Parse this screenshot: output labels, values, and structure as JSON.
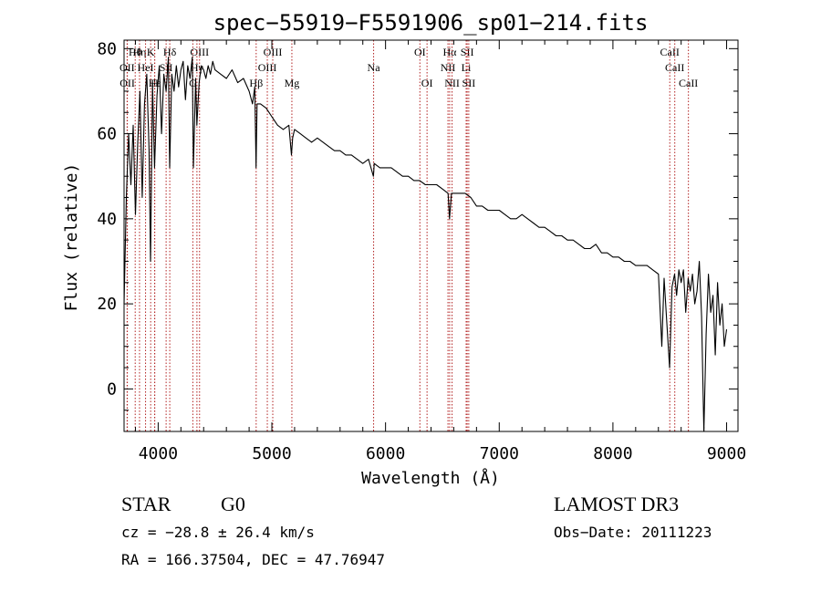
{
  "chart_data": {
    "type": "line",
    "title": "spec−55919−F5591906_sp01−214.fits",
    "xlabel": "Wavelength (Å)",
    "ylabel": "Flux (relative)",
    "xlim": [
      3700,
      9100
    ],
    "ylim": [
      -10,
      82
    ],
    "xticks": [
      4000,
      5000,
      6000,
      7000,
      8000,
      9000
    ],
    "yticks": [
      0,
      20,
      40,
      60,
      80
    ],
    "series": [
      {
        "name": "flux",
        "x": [
          3700,
          3720,
          3740,
          3760,
          3780,
          3800,
          3820,
          3840,
          3860,
          3880,
          3900,
          3920,
          3933,
          3950,
          3968,
          3990,
          4010,
          4030,
          4050,
          4070,
          4090,
          4101,
          4120,
          4140,
          4160,
          4180,
          4200,
          4220,
          4240,
          4260,
          4280,
          4300,
          4310,
          4330,
          4340,
          4360,
          4380,
          4400,
          4420,
          4440,
          4460,
          4480,
          4500,
          4550,
          4600,
          4650,
          4700,
          4750,
          4800,
          4830,
          4850,
          4861,
          4870,
          4900,
          4950,
          5000,
          5050,
          5100,
          5150,
          5172,
          5183,
          5200,
          5250,
          5300,
          5350,
          5400,
          5450,
          5500,
          5550,
          5600,
          5650,
          5700,
          5750,
          5800,
          5850,
          5893,
          5896,
          5900,
          5950,
          6000,
          6050,
          6100,
          6150,
          6200,
          6250,
          6300,
          6350,
          6400,
          6450,
          6500,
          6550,
          6563,
          6580,
          6600,
          6650,
          6700,
          6750,
          6800,
          6850,
          6900,
          6950,
          7000,
          7050,
          7100,
          7150,
          7200,
          7250,
          7300,
          7350,
          7400,
          7450,
          7500,
          7550,
          7600,
          7650,
          7700,
          7750,
          7800,
          7850,
          7900,
          7950,
          8000,
          8050,
          8100,
          8150,
          8200,
          8250,
          8300,
          8350,
          8400,
          8430,
          8450,
          8498,
          8520,
          8542,
          8560,
          8580,
          8600,
          8620,
          8640,
          8662,
          8680,
          8700,
          8720,
          8740,
          8760,
          8780,
          8800,
          8820,
          8840,
          8860,
          8880,
          8900,
          8920,
          8940,
          8960,
          8980,
          9000
        ],
        "values": [
          20,
          45,
          60,
          48,
          62,
          41,
          58,
          70,
          45,
          67,
          74,
          56,
          30,
          72,
          52,
          69,
          76,
          60,
          74,
          70,
          78,
          52,
          74,
          70,
          76,
          71,
          75,
          77,
          68,
          76,
          73,
          78,
          52,
          73,
          62,
          72,
          76,
          75,
          73,
          76,
          74,
          77,
          75,
          74,
          73,
          75,
          72,
          73,
          70,
          67,
          71,
          52,
          67,
          67,
          66,
          64,
          62,
          61,
          62,
          55,
          59,
          61,
          60,
          59,
          58,
          59,
          58,
          57,
          56,
          56,
          55,
          55,
          54,
          53,
          54,
          50,
          51,
          53,
          52,
          52,
          52,
          51,
          50,
          50,
          49,
          49,
          48,
          48,
          48,
          47,
          46,
          40,
          46,
          46,
          46,
          46,
          45,
          43,
          43,
          42,
          42,
          42,
          41,
          40,
          40,
          41,
          40,
          39,
          38,
          38,
          37,
          36,
          36,
          35,
          35,
          34,
          33,
          33,
          34,
          32,
          32,
          31,
          31,
          30,
          30,
          29,
          29,
          29,
          28,
          27,
          10,
          26,
          5,
          24,
          27,
          22,
          28,
          25,
          28,
          18,
          26,
          23,
          27,
          20,
          23,
          30,
          17,
          -10,
          13,
          27,
          18,
          22,
          8,
          25,
          15,
          20,
          10,
          14
        ]
      }
    ],
    "line_markers": [
      {
        "label": "Hθ",
        "wavelength": 3798,
        "row": 1
      },
      {
        "label": "Hη",
        "wavelength": 3836,
        "row": 1
      },
      {
        "label": "K",
        "wavelength": 3934,
        "row": 1
      },
      {
        "label": "Hδ",
        "wavelength": 4102,
        "row": 1
      },
      {
        "label": "OIII",
        "wavelength": 4364,
        "row": 1
      },
      {
        "label": "OIII",
        "wavelength": 5008,
        "row": 1
      },
      {
        "label": "OI",
        "wavelength": 6302,
        "row": 1
      },
      {
        "label": "Hα",
        "wavelength": 6564,
        "row": 1
      },
      {
        "label": "SII",
        "wavelength": 6718,
        "row": 1
      },
      {
        "label": "CaII",
        "wavelength": 8500,
        "row": 1
      },
      {
        "label": "OII",
        "wavelength": 3727,
        "row": 2
      },
      {
        "label": "HeI",
        "wavelength": 3889,
        "row": 2
      },
      {
        "label": "SII",
        "wavelength": 4070,
        "row": 2
      },
      {
        "label": "Hγ",
        "wavelength": 4341,
        "row": 2
      },
      {
        "label": "OIII",
        "wavelength": 4960,
        "row": 2
      },
      {
        "label": "Na",
        "wavelength": 5895,
        "row": 2
      },
      {
        "label": "NII",
        "wavelength": 6549,
        "row": 2
      },
      {
        "label": "Li",
        "wavelength": 6709,
        "row": 2
      },
      {
        "label": "CaII",
        "wavelength": 8544,
        "row": 2
      },
      {
        "label": "OII",
        "wavelength": 3729,
        "row": 3
      },
      {
        "label": "Hε",
        "wavelength": 3970,
        "row": 3
      },
      {
        "label": "H",
        "wavelength": 3969,
        "row": 3
      },
      {
        "label": "G",
        "wavelength": 4305,
        "row": 3
      },
      {
        "label": "Hβ",
        "wavelength": 4862,
        "row": 3
      },
      {
        "label": "Mg",
        "wavelength": 5176,
        "row": 3
      },
      {
        "label": "OI",
        "wavelength": 6365,
        "row": 3
      },
      {
        "label": "NII",
        "wavelength": 6585,
        "row": 3
      },
      {
        "label": "SII",
        "wavelength": 6732,
        "row": 3
      },
      {
        "label": "CaII",
        "wavelength": 8664,
        "row": 3
      }
    ]
  },
  "info": {
    "object_class": "STAR",
    "subclass": "G0",
    "redshift": "cz = −28.8 ± 26.4 km/s",
    "coordinates": "RA = 166.37504, DEC =  47.76947",
    "survey": "LAMOST DR3",
    "obs_date": "Obs−Date: 20111223"
  },
  "colors": {
    "axis": "#000000",
    "spectrum": "#000000",
    "marker": "#b22222"
  }
}
